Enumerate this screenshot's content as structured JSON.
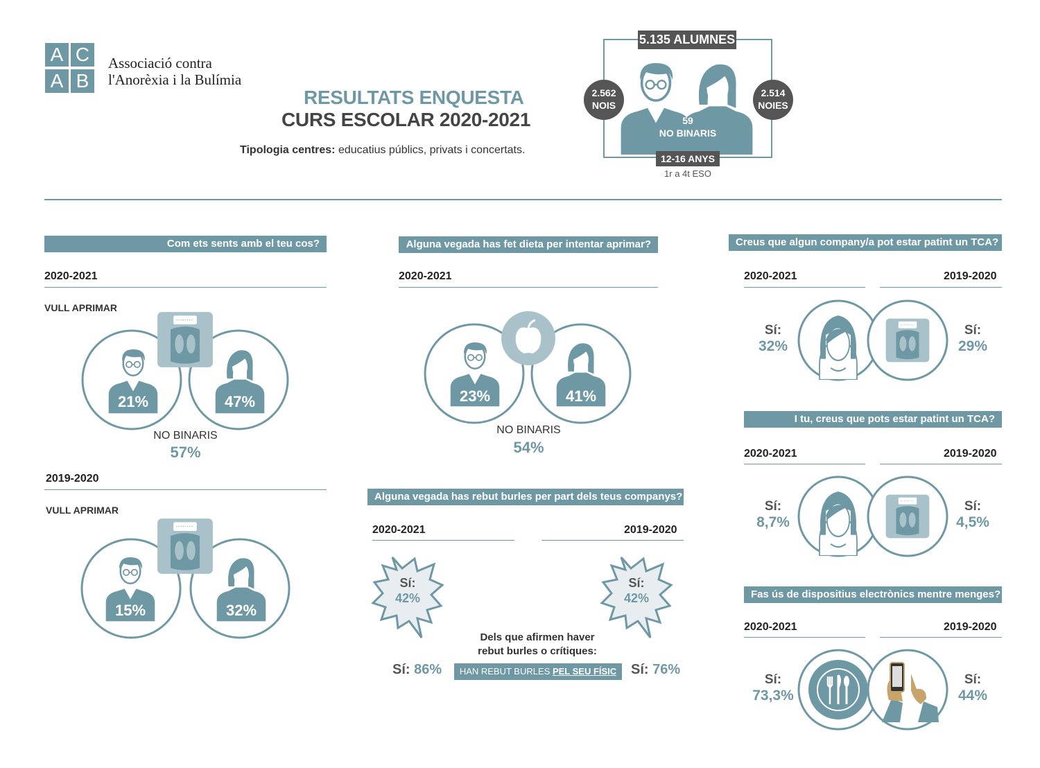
{
  "org": {
    "logo_letters": [
      "A",
      "C",
      "A",
      "B"
    ],
    "name_line1": "Associació contra",
    "name_line2": "l'Anorèxia i la Bulímia"
  },
  "header": {
    "title1": "RESULTATS ENQUESTA",
    "title2": "CURS ESCOLAR 2020-2021",
    "type_label": "Tipologia centres:",
    "type_value": "educatius públics, privats i concertats.",
    "total": "5.135 ALUMNES",
    "boys_num": "2.562",
    "boys_label": "NOIS",
    "girls_num": "2.514",
    "girls_label": "NOIES",
    "nb_num": "59",
    "nb_label": "NO BINARIS",
    "age": "12-16 ANYS",
    "grade": "1r a 4t ESO"
  },
  "body_q": {
    "question": "Com ets sents amb el teu cos?",
    "y1": "2020-2021",
    "y1_label": "VULL APRIMAR",
    "y1_boys": "21%",
    "y1_girls": "47%",
    "nb_label": "NO BINARIS",
    "nb_value": "57%",
    "y2": "2019-2020",
    "y2_label": "VULL APRIMAR",
    "y2_boys": "15%",
    "y2_girls": "32%"
  },
  "diet_q": {
    "question": "Alguna vegada has fet dieta per intentar aprimar?",
    "year": "2020-2021",
    "boys": "23%",
    "girls": "41%",
    "nb_label": "NO BINARIS",
    "nb_value": "54%"
  },
  "mock_q": {
    "question": "Alguna vegada has rebut burles per part dels teus companys?",
    "y1": "2020-2021",
    "y2": "2019-2020",
    "si": "Sí:",
    "y1_value": "42%",
    "y2_value": "42%",
    "note1": "Dels que afirmen haver",
    "note2": "rebut burles o crítiques:",
    "left_si": "Sí:",
    "left_value": "86%",
    "badge_pre": "HAN REBUT BURLES",
    "badge_bold": "PEL SEU FÍSIC",
    "right_si": "Sí:",
    "right_value": "76%"
  },
  "classmate_q": {
    "question": "Creus que algun company/a pot estar patint un TCA?",
    "y1": "2020-2021",
    "y2": "2019-2020",
    "si": "Sí:",
    "y1_value": "32%",
    "y2_value": "29%"
  },
  "self_q": {
    "question": "I tu, creus que pots estar patint un TCA?",
    "y1": "2020-2021",
    "y2": "2019-2020",
    "si": "Sí:",
    "y1_value": "8,7%",
    "y2_value": "4,5%"
  },
  "device_q": {
    "question": "Fas ús de dispositius electrònics mentre menges?",
    "y1": "2020-2021",
    "y2": "2019-2020",
    "si": "Sí:",
    "y1_value": "73,3%",
    "y2_value": "44%"
  },
  "colors": {
    "accent": "#6f98a5",
    "light": "#a9c2c9",
    "dark_badge": "#555555"
  }
}
